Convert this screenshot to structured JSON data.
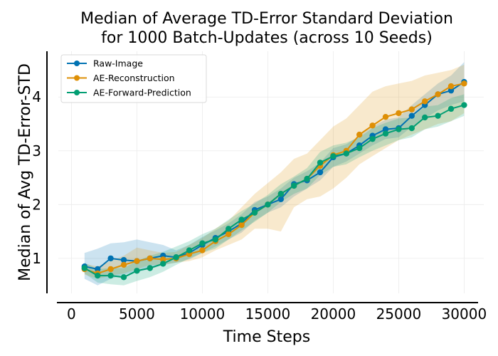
{
  "chart_data": {
    "type": "line",
    "title": "Median of Average TD-Error Standard Deviation",
    "subtitle": "for 1000 Batch-Updates (across 10 Seeds)",
    "xlabel": "Time Steps",
    "ylabel": "Median of Avg TD-Error-STD",
    "xlim": [
      -1000,
      31500
    ],
    "ylim": [
      0.35,
      4.85
    ],
    "xticks": [
      0,
      5000,
      10000,
      15000,
      20000,
      25000,
      30000
    ],
    "yticks": [
      1,
      2,
      3,
      4
    ],
    "grid": true,
    "legend_position": "top-left",
    "x": [
      1000,
      2000,
      3000,
      4000,
      5000,
      6000,
      7000,
      8000,
      9000,
      10000,
      11000,
      12000,
      13000,
      14000,
      15000,
      16000,
      17000,
      18000,
      19000,
      20000,
      21000,
      22000,
      23000,
      24000,
      25000,
      26000,
      27000,
      28000,
      29000,
      30000
    ],
    "series": [
      {
        "name": "Raw-Image",
        "color": "#0072b2",
        "values": [
          0.85,
          0.8,
          1.0,
          0.97,
          0.95,
          1.0,
          1.05,
          1.02,
          1.1,
          1.25,
          1.38,
          1.5,
          1.65,
          1.9,
          2.0,
          2.1,
          2.38,
          2.45,
          2.6,
          2.88,
          2.95,
          3.1,
          3.28,
          3.4,
          3.42,
          3.65,
          3.85,
          4.05,
          4.12,
          4.28
        ],
        "lower": [
          0.62,
          0.5,
          0.62,
          0.7,
          0.75,
          0.8,
          0.88,
          0.92,
          0.98,
          1.1,
          1.22,
          1.35,
          1.48,
          1.7,
          1.85,
          1.95,
          2.15,
          2.3,
          2.45,
          2.7,
          2.8,
          2.95,
          3.1,
          3.22,
          3.25,
          3.45,
          3.6,
          3.75,
          3.85,
          3.92
        ],
        "upper": [
          1.1,
          1.18,
          1.28,
          1.3,
          1.35,
          1.3,
          1.25,
          1.15,
          1.25,
          1.4,
          1.52,
          1.65,
          1.82,
          2.05,
          2.15,
          2.3,
          2.5,
          2.62,
          2.78,
          3.05,
          3.12,
          3.28,
          3.45,
          3.58,
          3.62,
          3.85,
          4.05,
          4.25,
          4.4,
          4.65
        ]
      },
      {
        "name": "AE-Reconstruction",
        "color": "#de8f05",
        "values": [
          0.8,
          0.72,
          0.8,
          0.88,
          0.95,
          1.0,
          0.98,
          1.0,
          1.08,
          1.15,
          1.32,
          1.45,
          1.62,
          1.85,
          2.0,
          2.2,
          2.35,
          2.48,
          2.72,
          2.92,
          3.0,
          3.3,
          3.47,
          3.63,
          3.7,
          3.77,
          3.92,
          4.05,
          4.2,
          4.25
        ],
        "lower": [
          0.7,
          0.62,
          0.68,
          0.72,
          0.8,
          0.88,
          0.88,
          0.92,
          0.95,
          1.02,
          1.15,
          1.25,
          1.35,
          1.55,
          1.55,
          1.5,
          1.95,
          2.1,
          2.15,
          2.3,
          2.5,
          2.75,
          2.9,
          3.05,
          3.2,
          3.3,
          3.4,
          3.5,
          3.55,
          3.7
        ],
        "upper": [
          0.9,
          0.85,
          0.95,
          1.05,
          1.2,
          1.15,
          1.1,
          1.12,
          1.25,
          1.38,
          1.55,
          1.7,
          1.95,
          2.2,
          2.4,
          2.6,
          2.85,
          2.95,
          3.2,
          3.45,
          3.6,
          3.85,
          4.1,
          4.2,
          4.25,
          4.3,
          4.4,
          4.45,
          4.5,
          4.6
        ]
      },
      {
        "name": "AE-Forward-Prediction",
        "color": "#029e73",
        "values": [
          0.82,
          0.68,
          0.68,
          0.65,
          0.77,
          0.82,
          0.9,
          1.02,
          1.15,
          1.28,
          1.35,
          1.55,
          1.72,
          1.85,
          2.0,
          2.2,
          2.35,
          2.48,
          2.78,
          2.9,
          2.95,
          3.05,
          3.22,
          3.32,
          3.4,
          3.42,
          3.62,
          3.65,
          3.78,
          3.85
        ],
        "lower": [
          0.72,
          0.55,
          0.52,
          0.5,
          0.58,
          0.65,
          0.75,
          0.88,
          1.0,
          1.1,
          1.18,
          1.35,
          1.52,
          1.68,
          1.85,
          2.05,
          2.2,
          2.3,
          2.55,
          2.7,
          2.75,
          2.88,
          3.0,
          3.1,
          3.2,
          3.25,
          3.4,
          3.45,
          3.55,
          3.65
        ],
        "upper": [
          0.92,
          0.8,
          0.82,
          0.82,
          0.95,
          1.05,
          1.12,
          1.22,
          1.32,
          1.45,
          1.55,
          1.72,
          1.88,
          2.02,
          2.18,
          2.38,
          2.52,
          2.68,
          2.98,
          3.1,
          3.15,
          3.25,
          3.42,
          3.52,
          3.6,
          3.62,
          3.82,
          3.85,
          3.98,
          4.05
        ]
      }
    ]
  }
}
